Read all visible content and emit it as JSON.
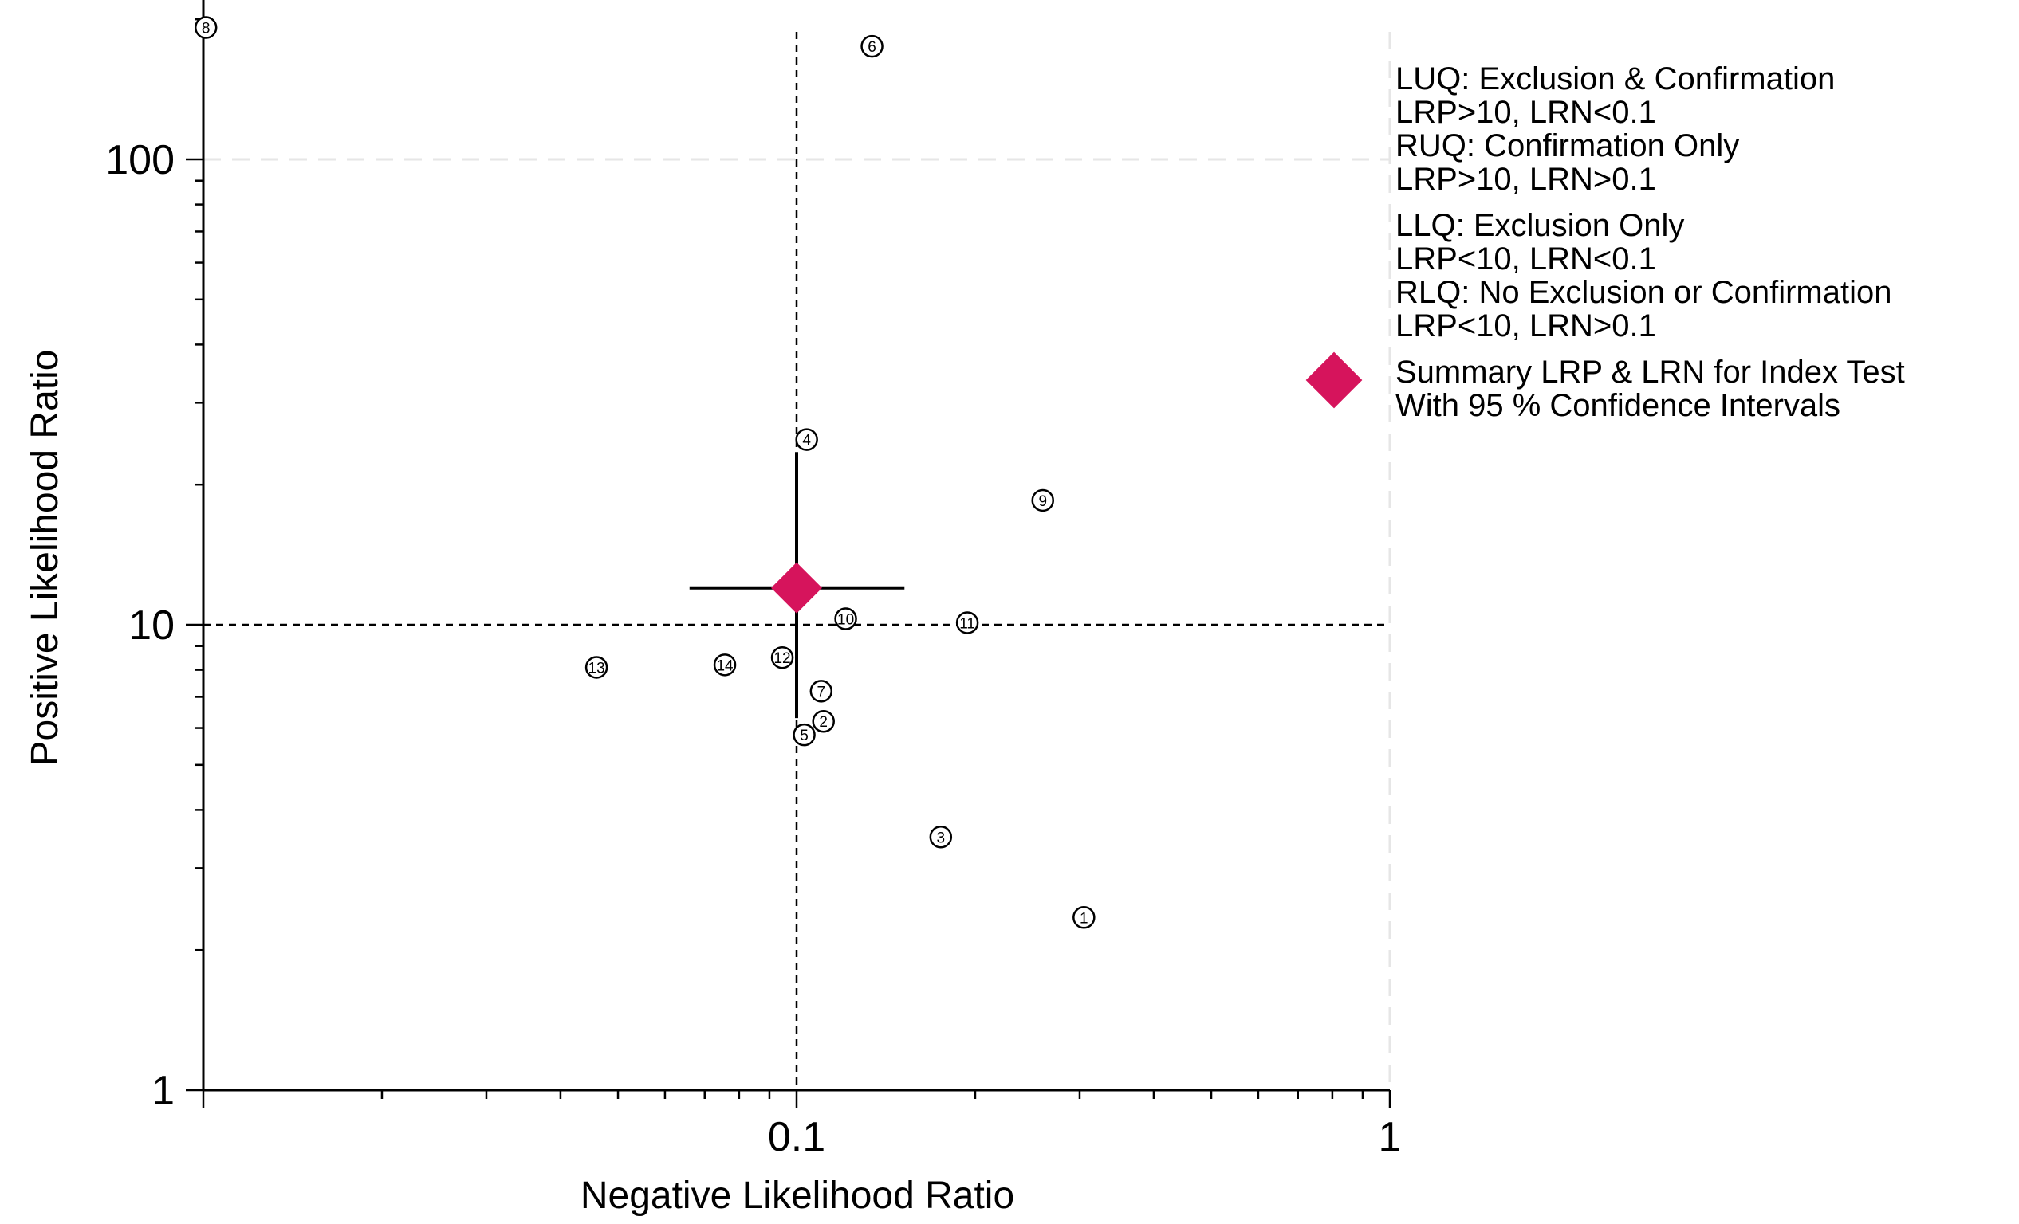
{
  "chart_data": {
    "type": "scatter",
    "xlabel": "Negative Likelihood Ratio",
    "ylabel": "Positive Likelihood Ratio",
    "xscale": "log",
    "yscale": "log",
    "xlim": [
      0.01,
      1
    ],
    "ylim": [
      1,
      200
    ],
    "x_ticks": [
      {
        "value": 0.1,
        "label": "0.1"
      },
      {
        "value": 1,
        "label": "1"
      }
    ],
    "y_ticks": [
      {
        "value": 1,
        "label": "1"
      },
      {
        "value": 10,
        "label": "10"
      },
      {
        "value": 100,
        "label": "100"
      }
    ],
    "reference_lines": {
      "x": 0.1,
      "y": 10
    },
    "grid": "dashed major gridlines",
    "studies": [
      {
        "id": "1",
        "lrn": 0.305,
        "lrp": 2.35
      },
      {
        "id": "2",
        "lrn": 0.111,
        "lrp": 6.2
      },
      {
        "id": "3",
        "lrn": 0.175,
        "lrp": 3.5
      },
      {
        "id": "4",
        "lrn": 0.104,
        "lrp": 25.0
      },
      {
        "id": "5",
        "lrn": 0.103,
        "lrp": 5.8
      },
      {
        "id": "6",
        "lrn": 0.134,
        "lrp": 175
      },
      {
        "id": "7",
        "lrn": 0.11,
        "lrp": 7.2
      },
      {
        "id": "8",
        "lrn": 0.0101,
        "lrp": 192
      },
      {
        "id": "9",
        "lrn": 0.26,
        "lrp": 18.5
      },
      {
        "id": "10",
        "lrn": 0.121,
        "lrp": 10.3
      },
      {
        "id": "11",
        "lrn": 0.194,
        "lrp": 10.1
      },
      {
        "id": "12",
        "lrn": 0.0946,
        "lrp": 8.5
      },
      {
        "id": "13",
        "lrn": 0.046,
        "lrp": 8.1
      },
      {
        "id": "14",
        "lrn": 0.0757,
        "lrp": 8.2
      }
    ],
    "summary": {
      "lrn": 0.1,
      "lrp": 12.0,
      "lrn_ci": [
        0.066,
        0.152
      ],
      "lrp_ci": [
        6.3,
        23.5
      ],
      "color": "#D6145C"
    },
    "legend": {
      "position": "right",
      "quadrants": [
        [
          "LUQ: Exclusion & Confirmation",
          "LRP>10, LRN<0.1",
          "RUQ: Confirmation Only",
          "LRP>10, LRN>0.1"
        ],
        [
          "LLQ: Exclusion Only",
          "LRP<10, LRN<0.1",
          "RLQ: No Exclusion or Confirmation",
          "LRP<10, LRN>0.1"
        ]
      ],
      "summary_lines": [
        "Summary LRP & LRN for Index Test",
        "With 95 % Confidence Intervals"
      ]
    }
  }
}
